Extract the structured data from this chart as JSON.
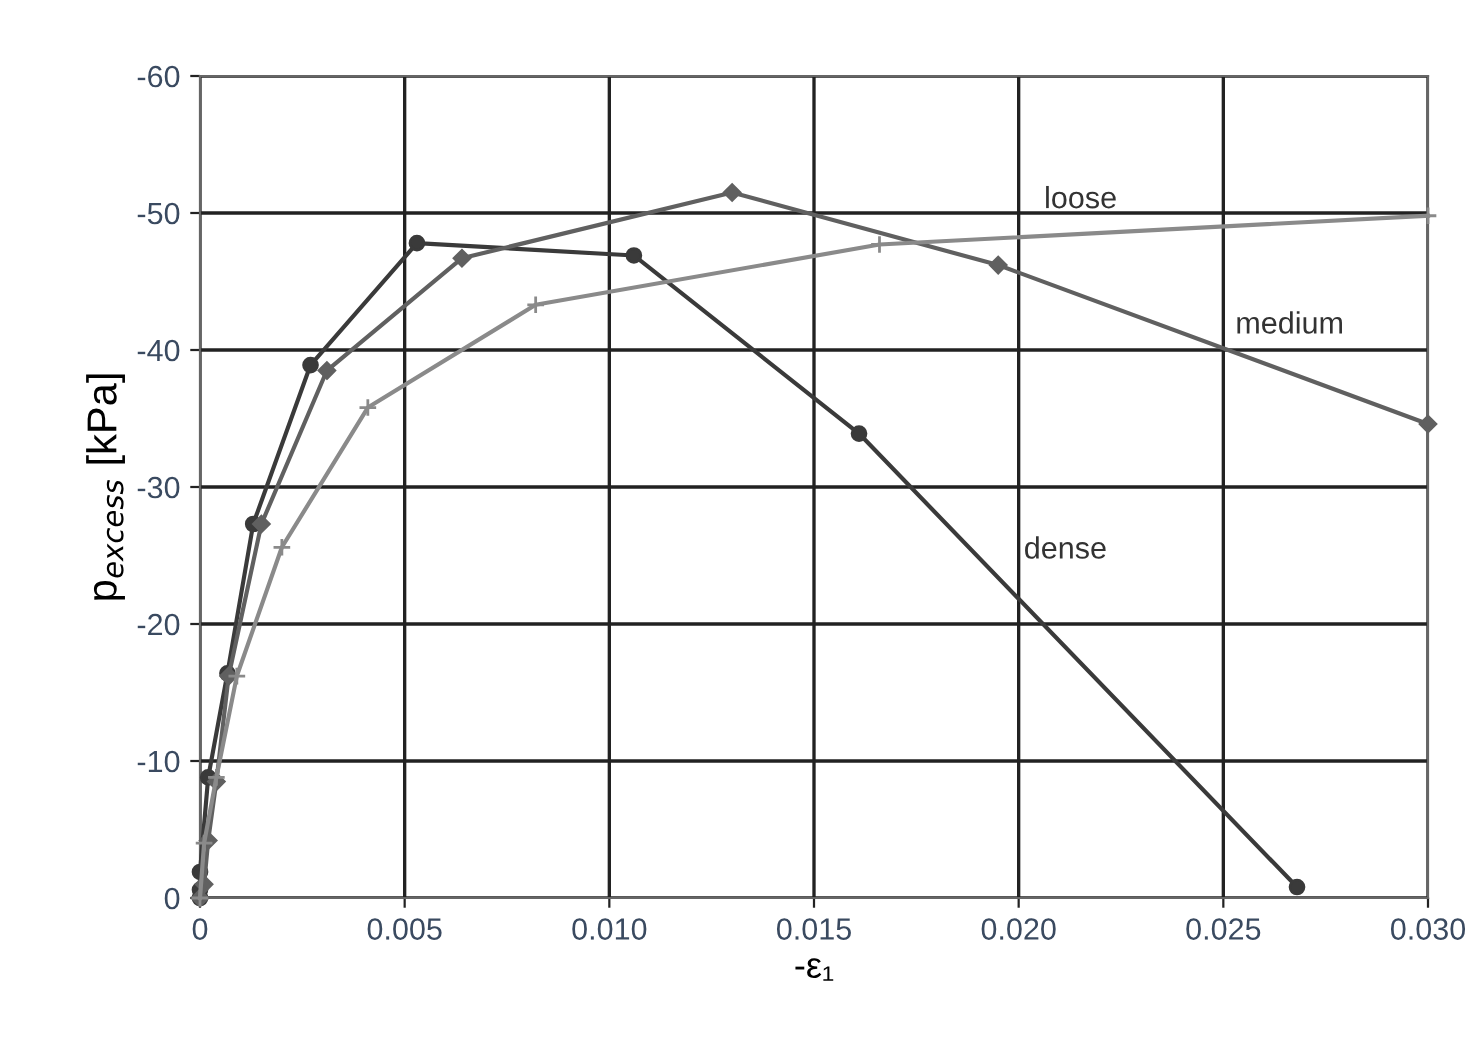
{
  "chart_data": {
    "type": "line",
    "xlabel": "-ε₁",
    "ylabel": "p$_{excess}$ [kPa]",
    "series": [
      {
        "name": "dense",
        "color": "#3a3a3a",
        "marker": "circle",
        "x": [
          0,
          0,
          0,
          0.0002,
          0.00067,
          0.0013,
          0.0027,
          0.0053,
          0.0106,
          0.0161,
          0.0268
        ],
        "values": [
          0,
          -0.6,
          -1.9,
          -8.8,
          -16.4,
          -27.3,
          -38.9,
          -47.8,
          -46.9,
          -33.9,
          -0.8
        ]
      },
      {
        "name": "medium",
        "color": "#606060",
        "marker": "diamond",
        "x": [
          0,
          0.0001,
          0.0002,
          0.0004,
          0.0007,
          0.0015,
          0.0031,
          0.0064,
          0.013,
          0.0195,
          0.03
        ],
        "values": [
          0,
          -1,
          -4.2,
          -8.5,
          -16.2,
          -27.3,
          -38.5,
          -46.7,
          -51.5,
          -46.2,
          -34.6
        ]
      },
      {
        "name": "loose",
        "color": "#8a8a8a",
        "marker": "cross",
        "x": [
          0,
          0.0001,
          0.0004,
          0.0009,
          0.002,
          0.0041,
          0.0082,
          0.0166,
          0.03
        ],
        "values": [
          0,
          -4,
          -8.8,
          -16.2,
          -25.6,
          -35.8,
          -43.3,
          -47.7,
          -49.8
        ]
      }
    ],
    "xlim": [
      0,
      0.03
    ],
    "ylim": [
      0,
      -60
    ],
    "xticks": [
      0,
      0.005,
      {
        "value": 0.01,
        "label": "0.010"
      },
      0.015,
      {
        "value": 0.02,
        "label": "0.020"
      },
      0.025,
      {
        "value": 0.03,
        "label": "0.030"
      }
    ],
    "yticks": [
      0,
      -10,
      -20,
      -30,
      -40,
      -50,
      -60
    ],
    "grid": true
  }
}
